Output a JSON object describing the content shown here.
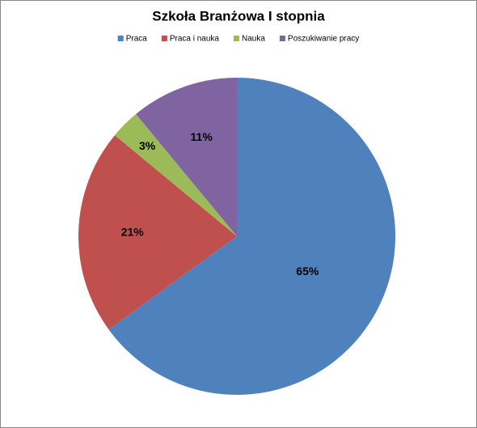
{
  "chart_data": {
    "type": "pie",
    "title": "Szkoła Branżowa I stopnia",
    "categories": [
      "Praca",
      "Praca i nauka",
      "Nauka",
      "Poszukiwanie pracy"
    ],
    "values": [
      65,
      21,
      3,
      11
    ],
    "value_labels": [
      "65%",
      "21%",
      "3%",
      "11%"
    ],
    "colors": [
      "#4f81bd",
      "#c0504d",
      "#9bbb59",
      "#8064a2"
    ],
    "legend": "top"
  }
}
